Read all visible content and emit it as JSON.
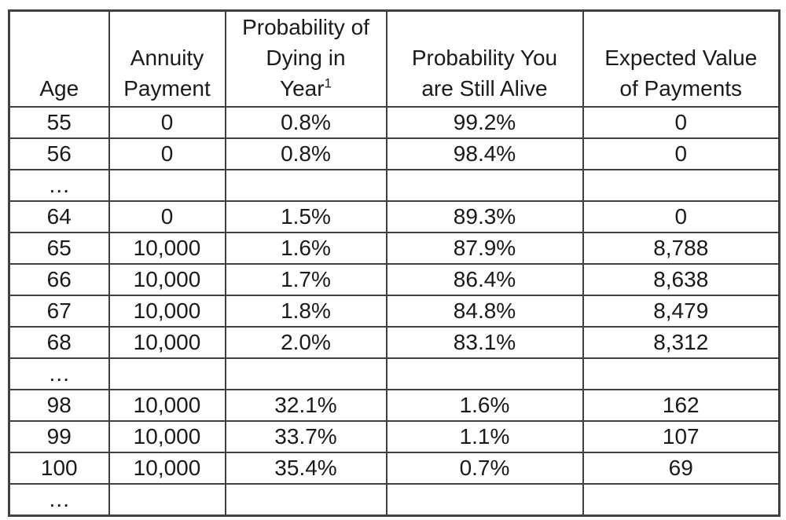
{
  "colors": {
    "border": "#404040",
    "text": "#1a1a1a",
    "background": "#ffffff"
  },
  "table": {
    "ellipsis_char": "…",
    "columns": [
      {
        "id": "age",
        "lines": [
          "Age"
        ],
        "sup": ""
      },
      {
        "id": "annuity-payment",
        "lines": [
          "Annuity",
          "Payment"
        ],
        "sup": ""
      },
      {
        "id": "probability-dying",
        "lines": [
          "Probability of",
          "Dying in",
          "Year"
        ],
        "sup": "1"
      },
      {
        "id": "probability-alive",
        "lines": [
          "Probability You",
          "are Still Alive"
        ],
        "sup": ""
      },
      {
        "id": "expected-value",
        "lines": [
          "Expected Value",
          "of Payments"
        ],
        "sup": ""
      }
    ],
    "rows": [
      [
        "55",
        "0",
        "0.8%",
        "99.2%",
        "0"
      ],
      [
        "56",
        "0",
        "0.8%",
        "98.4%",
        "0"
      ],
      [
        "…",
        "",
        "",
        "",
        ""
      ],
      [
        "64",
        "0",
        "1.5%",
        "89.3%",
        "0"
      ],
      [
        "65",
        "10,000",
        "1.6%",
        "87.9%",
        "8,788"
      ],
      [
        "66",
        "10,000",
        "1.7%",
        "86.4%",
        "8,638"
      ],
      [
        "67",
        "10,000",
        "1.8%",
        "84.8%",
        "8,479"
      ],
      [
        "68",
        "10,000",
        "2.0%",
        "83.1%",
        "8,312"
      ],
      [
        "…",
        "",
        "",
        "",
        ""
      ],
      [
        "98",
        "10,000",
        "32.1%",
        "1.6%",
        "162"
      ],
      [
        "99",
        "10,000",
        "33.7%",
        "1.1%",
        "107"
      ],
      [
        "100",
        "10,000",
        "35.4%",
        "0.7%",
        "69"
      ],
      [
        "…",
        "",
        "",
        "",
        ""
      ]
    ]
  },
  "chart_data": {
    "type": "table",
    "title": "",
    "columns": [
      "Age",
      "Annuity Payment",
      "Probability of Dying in Year¹",
      "Probability You are Still Alive",
      "Expected Value of Payments"
    ],
    "rows": [
      {
        "age": 55,
        "annuity_payment": 0,
        "probability_dying_pct": 0.8,
        "probability_alive_pct": 99.2,
        "expected_value": 0
      },
      {
        "age": 56,
        "annuity_payment": 0,
        "probability_dying_pct": 0.8,
        "probability_alive_pct": 98.4,
        "expected_value": 0
      },
      {
        "age": "…"
      },
      {
        "age": 64,
        "annuity_payment": 0,
        "probability_dying_pct": 1.5,
        "probability_alive_pct": 89.3,
        "expected_value": 0
      },
      {
        "age": 65,
        "annuity_payment": 10000,
        "probability_dying_pct": 1.6,
        "probability_alive_pct": 87.9,
        "expected_value": 8788
      },
      {
        "age": 66,
        "annuity_payment": 10000,
        "probability_dying_pct": 1.7,
        "probability_alive_pct": 86.4,
        "expected_value": 8638
      },
      {
        "age": 67,
        "annuity_payment": 10000,
        "probability_dying_pct": 1.8,
        "probability_alive_pct": 84.8,
        "expected_value": 8479
      },
      {
        "age": 68,
        "annuity_payment": 10000,
        "probability_dying_pct": 2.0,
        "probability_alive_pct": 83.1,
        "expected_value": 8312
      },
      {
        "age": "…"
      },
      {
        "age": 98,
        "annuity_payment": 10000,
        "probability_dying_pct": 32.1,
        "probability_alive_pct": 1.6,
        "expected_value": 162
      },
      {
        "age": 99,
        "annuity_payment": 10000,
        "probability_dying_pct": 33.7,
        "probability_alive_pct": 1.1,
        "expected_value": 107
      },
      {
        "age": 100,
        "annuity_payment": 10000,
        "probability_dying_pct": 35.4,
        "probability_alive_pct": 0.7,
        "expected_value": 69
      },
      {
        "age": "…"
      }
    ],
    "footnote_marker": "1"
  }
}
